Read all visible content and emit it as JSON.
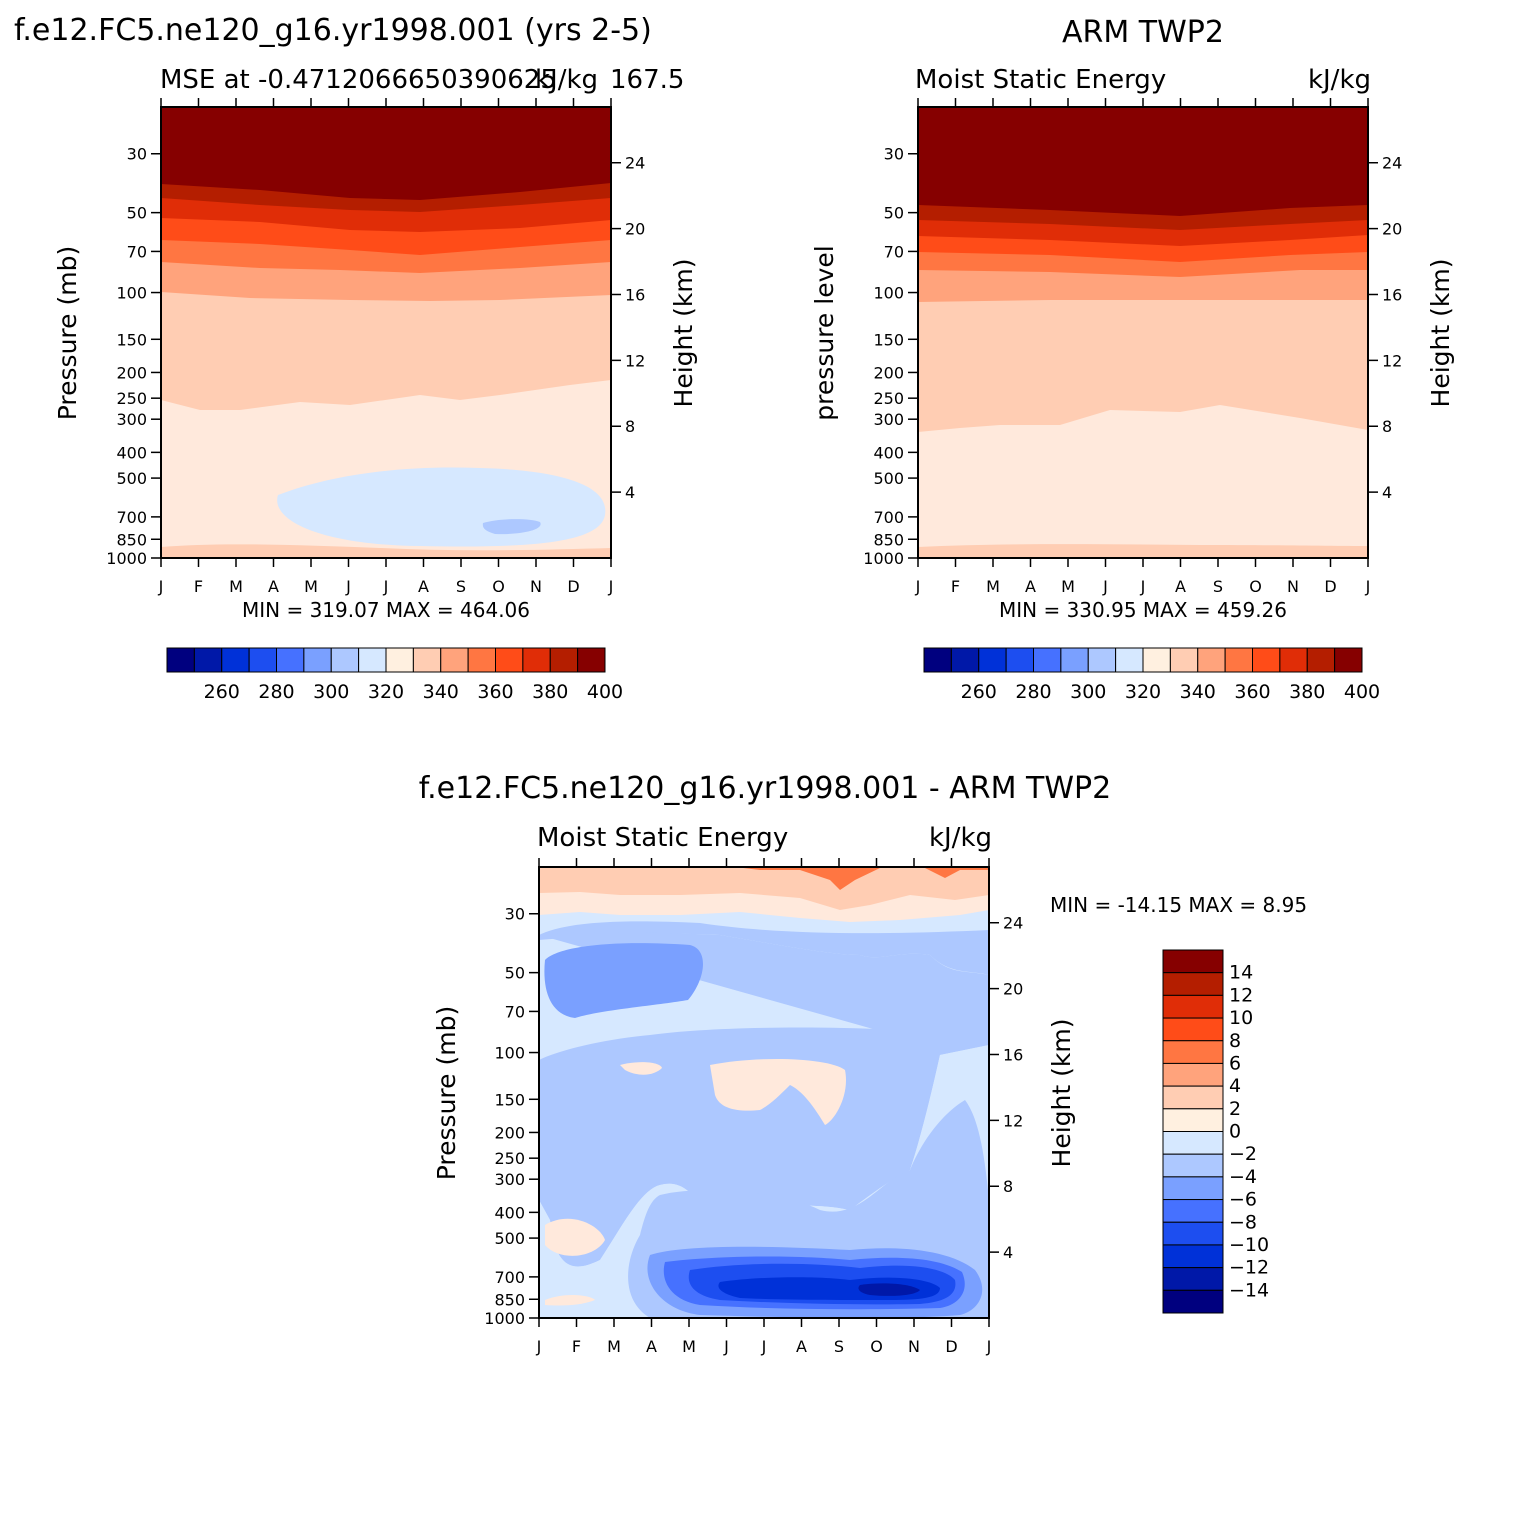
{
  "figure": {
    "panels": [
      {
        "title": "f.e12.FC5.ne120_g16.yr1998.001 (yrs 2-5)",
        "left_label": "MSE at -0.4712066650390625",
        "right_label": "kJ/kg",
        "right_label_extra": "167.5",
        "ylabel": "Pressure (mb)",
        "ylabel_right": "Height (km)",
        "minmax": "MIN = 319.07 MAX = 464.06"
      },
      {
        "title": "ARM TWP2",
        "left_label": "Moist Static Energy",
        "right_label": "kJ/kg",
        "ylabel": "pressure level",
        "ylabel_right": "Height (km)",
        "minmax": "MIN = 330.95 MAX = 459.26"
      },
      {
        "title": "f.e12.FC5.ne120_g16.yr1998.001 - ARM TWP2",
        "left_label": "Moist Static Energy",
        "right_label": "kJ/kg",
        "ylabel": "Pressure (mb)",
        "ylabel_right": "Height (km)",
        "minmax": "MIN = -14.15 MAX =    8.95"
      }
    ]
  },
  "chart_data": [
    {
      "type": "heatmap",
      "title": "f.e12.FC5.ne120_g16.yr1998.001 (yrs 2-5)",
      "subtitle": "MSE at -0.4712066650390625 167.5",
      "units": "kJ/kg",
      "xlabel": "",
      "ylabel": "Pressure (mb)",
      "ylabel_right": "Height (km)",
      "x_ticks": [
        "J",
        "F",
        "M",
        "A",
        "M",
        "J",
        "J",
        "A",
        "S",
        "O",
        "N",
        "D",
        "J"
      ],
      "y_ticks": [
        30,
        50,
        70,
        100,
        150,
        200,
        250,
        300,
        400,
        500,
        700,
        850,
        1000
      ],
      "y_right_ticks": [
        24,
        20,
        16,
        12,
        8,
        4
      ],
      "min": 319.07,
      "max": 464.06,
      "colorbar_levels": [
        250,
        260,
        270,
        280,
        290,
        300,
        310,
        320,
        330,
        340,
        350,
        360,
        370,
        380,
        390,
        400
      ],
      "colorbar_labels": [
        "260",
        "280",
        "300",
        "320",
        "340",
        "360",
        "380",
        "400"
      ],
      "approx_bands_by_pressure": [
        {
          "p_top": 20,
          "p_bottom": 55,
          "value_range": "above 400"
        },
        {
          "p_top": 55,
          "p_bottom": 95,
          "value_range": "360-400"
        },
        {
          "p_top": 95,
          "p_bottom": 280,
          "value_range": "340-360"
        },
        {
          "p_top": 280,
          "p_bottom": 1000,
          "value_range": "330-340"
        },
        {
          "p_top": 500,
          "p_bottom": 800,
          "value_range": "320-330",
          "months": "Apr-Dec"
        }
      ]
    },
    {
      "type": "heatmap",
      "title": "ARM TWP2",
      "subtitle": "Moist Static Energy",
      "units": "kJ/kg",
      "xlabel": "",
      "ylabel": "pressure level",
      "ylabel_right": "Height (km)",
      "x_ticks": [
        "J",
        "F",
        "M",
        "A",
        "M",
        "J",
        "J",
        "A",
        "S",
        "O",
        "N",
        "D",
        "J"
      ],
      "y_ticks": [
        30,
        50,
        70,
        100,
        150,
        200,
        250,
        300,
        400,
        500,
        700,
        850,
        1000
      ],
      "y_right_ticks": [
        24,
        20,
        16,
        12,
        8,
        4
      ],
      "min": 330.95,
      "max": 459.26,
      "colorbar_levels": [
        250,
        260,
        270,
        280,
        290,
        300,
        310,
        320,
        330,
        340,
        350,
        360,
        370,
        380,
        390,
        400
      ],
      "colorbar_labels": [
        "260",
        "280",
        "300",
        "320",
        "340",
        "360",
        "380",
        "400"
      ],
      "approx_bands_by_pressure": [
        {
          "p_top": 20,
          "p_bottom": 58,
          "value_range": "above 400"
        },
        {
          "p_top": 58,
          "p_bottom": 100,
          "value_range": "360-400"
        },
        {
          "p_top": 100,
          "p_bottom": 330,
          "value_range": "340-360"
        },
        {
          "p_top": 330,
          "p_bottom": 1000,
          "value_range": "330-340"
        }
      ]
    },
    {
      "type": "heatmap",
      "title": "f.e12.FC5.ne120_g16.yr1998.001 - ARM TWP2",
      "subtitle": "Moist Static Energy",
      "units": "kJ/kg",
      "xlabel": "",
      "ylabel": "Pressure (mb)",
      "ylabel_right": "Height (km)",
      "x_ticks": [
        "J",
        "F",
        "M",
        "A",
        "M",
        "J",
        "J",
        "A",
        "S",
        "O",
        "N",
        "D",
        "J"
      ],
      "y_ticks": [
        30,
        50,
        70,
        100,
        150,
        200,
        250,
        300,
        400,
        500,
        700,
        850,
        1000
      ],
      "y_right_ticks": [
        24,
        20,
        16,
        12,
        8,
        4
      ],
      "min": -14.15,
      "max": 8.95,
      "colorbar_levels": [
        -14,
        -12,
        -10,
        -8,
        -6,
        -4,
        -2,
        0,
        2,
        4,
        6,
        8,
        10,
        12,
        14
      ],
      "colorbar_labels": [
        "14",
        "12",
        "10",
        "8",
        "6",
        "4",
        "2",
        "0",
        "−2",
        "−4",
        "−6",
        "−8",
        "−10",
        "−12",
        "−14"
      ],
      "approx_bands_by_pressure": [
        {
          "p_top": 20,
          "p_bottom": 40,
          "value_range": "0-6"
        },
        {
          "p_top": 40,
          "p_bottom": 120,
          "value_range": "-8 to -2"
        },
        {
          "p_top": 120,
          "p_bottom": 450,
          "value_range": "-2 to 2"
        },
        {
          "p_top": 450,
          "p_bottom": 1000,
          "value_range": "-14 to -2",
          "months": "May-Dec"
        }
      ]
    }
  ],
  "palette": [
    "#00007f",
    "#0018a8",
    "#0031d8",
    "#1d4ef0",
    "#4671ff",
    "#7aa0ff",
    "#adc8ff",
    "#d6e8ff",
    "#fff0e0",
    "#ffcdb3",
    "#ffa37c",
    "#ff7642",
    "#ff4c18",
    "#e02d07",
    "#b41e00",
    "#860000"
  ]
}
